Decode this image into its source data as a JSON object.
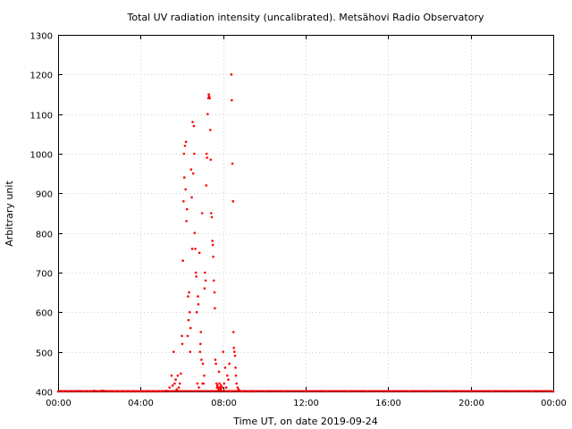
{
  "chart_data": {
    "type": "scatter",
    "title": "Total UV radiation intensity (uncalibrated). Metsähovi Radio Observatory",
    "xlabel": "Time UT, on date 2019-09-24",
    "ylabel": "Arbitrary unit",
    "x_unit": "hours UT",
    "xlim": [
      0,
      24
    ],
    "ylim": [
      400,
      1300
    ],
    "x_ticks": [
      0,
      4,
      8,
      12,
      16,
      20,
      24
    ],
    "x_tick_labels": [
      "00:00",
      "04:00",
      "08:00",
      "12:00",
      "16:00",
      "20:00",
      "00:00"
    ],
    "y_ticks": [
      400,
      500,
      600,
      700,
      800,
      900,
      1000,
      1100,
      1200,
      1300
    ],
    "y_tick_labels": [
      "400",
      "500",
      "600",
      "700",
      "800",
      "900",
      "1000",
      "1100",
      "1200",
      "1300"
    ],
    "grid": true,
    "legend": "none",
    "marker_color": "#ff0000",
    "series": [
      {
        "x": [
          0.0,
          0.25,
          0.5,
          0.75,
          1.0,
          1.25,
          1.5,
          1.75,
          2.0,
          2.1,
          2.2,
          2.5,
          2.75,
          3.0,
          3.25,
          3.5,
          3.75,
          4.0,
          4.25,
          4.5,
          4.75,
          5.0,
          5.25,
          5.4,
          5.5,
          5.55,
          5.6,
          5.65,
          5.7,
          5.75,
          5.8,
          5.85,
          5.9,
          5.95,
          6.0,
          6.02,
          6.05,
          6.08,
          6.1,
          6.12,
          6.15,
          6.18,
          6.2,
          6.22,
          6.25,
          6.28,
          6.3,
          6.32,
          6.35,
          6.38,
          6.4,
          6.42,
          6.45,
          6.48,
          6.5,
          6.52,
          6.55,
          6.58,
          6.6,
          6.62,
          6.65,
          6.68,
          6.7,
          6.72,
          6.75,
          6.78,
          6.8,
          6.82,
          6.85,
          6.88,
          6.9,
          6.92,
          6.95,
          6.98,
          7.0,
          7.02,
          7.05,
          7.08,
          7.1,
          7.12,
          7.15,
          7.18,
          7.2,
          7.22,
          7.25,
          7.28,
          7.3,
          7.32,
          7.35,
          7.38,
          7.4,
          7.42,
          7.45,
          7.48,
          7.5,
          7.52,
          7.55,
          7.58,
          7.6,
          7.62,
          7.65,
          7.68,
          7.7,
          7.72,
          7.75,
          7.78,
          7.8,
          7.82,
          7.85,
          7.88,
          7.9,
          7.95,
          8.0,
          8.05,
          8.1,
          8.15,
          8.2,
          8.25,
          8.3,
          8.35,
          8.4,
          8.42,
          8.45,
          8.48,
          8.5,
          8.52,
          8.55,
          8.58,
          8.6,
          8.62,
          8.65,
          8.7,
          8.75,
          8.8,
          8.9,
          9.0,
          9.25,
          9.5,
          10.0,
          11.0,
          12.0,
          13.0,
          14.0,
          15.0,
          16.0,
          17.0,
          18.0,
          19.0,
          20.0,
          21.0,
          22.0,
          23.0,
          24.0
        ],
        "y": [
          400,
          400,
          400,
          400,
          401,
          400,
          400,
          402,
          400,
          402,
          402,
          400,
          400,
          400,
          400,
          400,
          400,
          400,
          400,
          400,
          400,
          400,
          402,
          410,
          440,
          415,
          500,
          420,
          430,
          405,
          440,
          410,
          420,
          445,
          540,
          520,
          730,
          880,
          1000,
          940,
          1020,
          910,
          1030,
          830,
          860,
          540,
          640,
          580,
          650,
          600,
          500,
          560,
          960,
          890,
          760,
          1080,
          950,
          1070,
          1000,
          800,
          760,
          700,
          690,
          600,
          420,
          640,
          620,
          410,
          750,
          500,
          520,
          550,
          480,
          850,
          420,
          470,
          420,
          440,
          660,
          700,
          680,
          920,
          1000,
          990,
          1100,
          1140,
          1150,
          1145,
          1140,
          1060,
          985,
          850,
          840,
          780,
          770,
          740,
          680,
          650,
          610,
          480,
          470,
          420,
          410,
          415,
          410,
          405,
          450,
          420,
          410,
          405,
          415,
          410,
          500,
          420,
          460,
          410,
          440,
          430,
          470,
          400,
          1200,
          1135,
          975,
          880,
          550,
          510,
          500,
          490,
          460,
          440,
          420,
          410,
          405,
          402,
          400,
          401,
          400,
          400,
          400,
          400,
          400,
          400,
          400,
          400,
          400,
          400,
          400,
          400,
          400,
          400,
          400,
          400,
          400
        ]
      }
    ]
  }
}
